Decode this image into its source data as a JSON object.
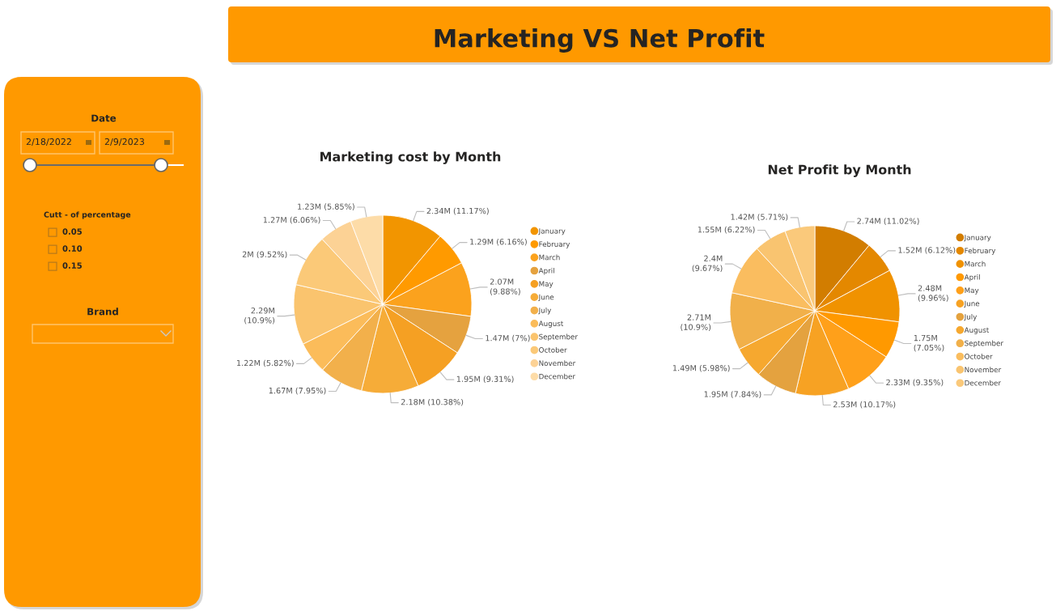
{
  "chart_data": [
    {
      "type": "other",
      "title": "Marketing VS Net Profit",
      "annotations": [
        "Date",
        "2/18/2022",
        "2/9/2023",
        "Cutt - of percentage",
        "0.05",
        "0.10",
        "0.15",
        "Brand"
      ]
    },
    {
      "type": "pie",
      "title": "Marketing cost by Month",
      "categories": [
        "January",
        "February",
        "March",
        "April",
        "May",
        "June",
        "July",
        "August",
        "September",
        "October",
        "November",
        "December"
      ],
      "values": [
        2340000,
        1290000,
        2070000,
        1470000,
        1950000,
        2180000,
        1670000,
        1220000,
        2290000,
        2000000,
        1270000,
        1230000
      ],
      "value_labels": [
        "2.34M (11.17%)",
        "1.29M (6.16%)",
        "2.07M\n(9.88%)",
        "1.47M (7%)",
        "1.95M (9.31%)",
        "2.18M (10.38%)",
        "1.67M (7.95%)",
        "1.22M (5.82%)",
        "2.29M\n(10.9%)",
        "2M (9.52%)",
        "1.27M (6.06%)",
        "1.23M (5.85%)"
      ],
      "colors": [
        "#f29500",
        "#ff9a00",
        "#fba21d",
        "#e5a23f",
        "#f5a023",
        "#f6ac38",
        "#f2b04b",
        "#fbbc5a",
        "#fac46e",
        "#fbc978",
        "#fcd295",
        "#fddca8"
      ],
      "legend": "right"
    },
    {
      "type": "pie",
      "title": "Net Profit by Month",
      "categories": [
        "January",
        "February",
        "March",
        "April",
        "May",
        "June",
        "July",
        "August",
        "September",
        "October",
        "November",
        "December"
      ],
      "values": [
        2740000,
        1520000,
        2480000,
        1750000,
        2330000,
        2530000,
        1950000,
        1490000,
        2710000,
        2400000,
        1550000,
        1420000
      ],
      "value_labels": [
        "2.74M (11.02%)",
        "1.52M (6.12%)",
        "2.48M\n(9.96%)",
        "1.75M\n(7.05%)",
        "2.33M (9.35%)",
        "2.53M (10.17%)",
        "1.95M (7.84%)",
        "1.49M (5.98%)",
        "2.71M\n(10.9%)",
        "2.4M\n(9.67%)",
        "1.55M (6.22%)",
        "1.42M (5.71%)"
      ],
      "colors": [
        "#d27d00",
        "#e48800",
        "#f09200",
        "#ff9900",
        "#ffa01a",
        "#f7a223",
        "#e4a23f",
        "#f6a82f",
        "#f1b04a",
        "#fabd5f",
        "#f9c470",
        "#fac97b"
      ],
      "legend": "right"
    }
  ]
}
